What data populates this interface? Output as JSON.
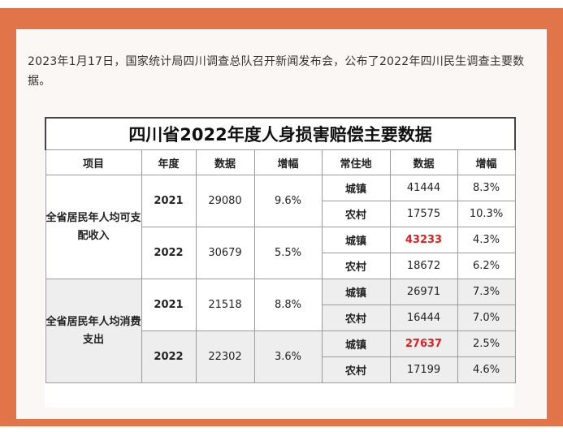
{
  "intro": {
    "text": "2023年1月17日，国家统计局四川调查总队召开新闻发布会，公布了2022年四川民生调查主要数据。"
  },
  "table": {
    "title": "四川省2022年度人身损害赔偿主要数据",
    "headers": [
      "项目",
      "年度",
      "数据",
      "增幅",
      "常住地",
      "数据",
      "增幅"
    ],
    "groups": [
      {
        "item": "全省居民年人均可支配收入",
        "years": [
          {
            "year": "2021",
            "value": "29080",
            "growth": "9.6%",
            "rows": [
              {
                "area": "城镇",
                "value": "41444",
                "growth": "8.3%"
              },
              {
                "area": "农村",
                "value": "17575",
                "growth": "10.3%"
              }
            ]
          },
          {
            "year": "2022",
            "value": "30679",
            "growth": "5.5%",
            "rows": [
              {
                "area": "城镇",
                "value": "43233",
                "growth": "4.3%"
              },
              {
                "area": "农村",
                "value": "18672",
                "growth": "6.2%"
              }
            ]
          }
        ]
      },
      {
        "item": "全省居民年人均消费支出",
        "years": [
          {
            "year": "2021",
            "value": "21518",
            "growth": "8.8%",
            "rows": [
              {
                "area": "城镇",
                "value": "26971",
                "growth": "7.3%"
              },
              {
                "area": "农村",
                "value": "16444",
                "growth": "7.0%"
              }
            ]
          },
          {
            "year": "2022",
            "value": "22302",
            "growth": "3.6%",
            "rows": [
              {
                "area": "城镇",
                "value": "27637",
                "growth": "2.5%"
              },
              {
                "area": "农村",
                "value": "17199",
                "growth": "4.6%"
              }
            ]
          }
        ]
      }
    ]
  },
  "colors": {
    "frame": "#e2744a",
    "highlight": "#e02020"
  }
}
